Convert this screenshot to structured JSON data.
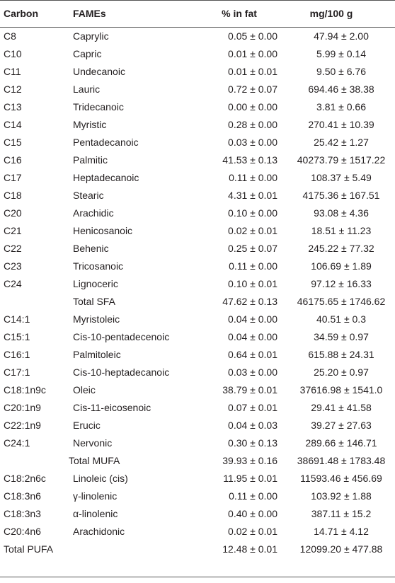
{
  "table": {
    "header": [
      "Carbon",
      "FAMEs",
      "% in fat",
      "mg/100 g"
    ],
    "rows": [
      [
        "C8",
        "Caprylic",
        "0.05 ± 0.00",
        "47.94 ± 2.00"
      ],
      [
        "C10",
        "Capric",
        "0.01 ± 0.00",
        "5.99 ± 0.14"
      ],
      [
        "C11",
        "Undecanoic",
        "0.01 ± 0.01",
        "9.50 ± 6.76"
      ],
      [
        "C12",
        "Lauric",
        "0.72 ± 0.07",
        "694.46 ± 38.38"
      ],
      [
        "C13",
        "Tridecanoic",
        "0.00 ± 0.00",
        "3.81 ± 0.66"
      ],
      [
        "C14",
        "Myristic",
        "0.28 ± 0.00",
        "270.41 ± 10.39"
      ],
      [
        "C15",
        "Pentadecanoic",
        "0.03 ± 0.00",
        "25.42 ± 1.27"
      ],
      [
        "C16",
        "Palmitic",
        "41.53 ± 0.13",
        "40273.79 ± 1517.22"
      ],
      [
        "C17",
        "Heptadecanoic",
        "0.11 ± 0.00",
        "108.37 ± 5.49"
      ],
      [
        "C18",
        "Stearic",
        "4.31 ± 0.01",
        "4175.36 ± 167.51"
      ],
      [
        "C20",
        "Arachidic",
        "0.10 ± 0.00",
        "93.08 ± 4.36"
      ],
      [
        "C21",
        "Henicosanoic",
        "0.02 ± 0.01",
        "18.51 ± 11.23"
      ],
      [
        "C22",
        "Behenic",
        "0.25 ± 0.07",
        "245.22 ± 77.32"
      ],
      [
        "C23",
        "Tricosanoic",
        "0.11 ± 0.00",
        "106.69 ± 1.89"
      ],
      [
        "C24",
        "Lignoceric",
        "0.10 ± 0.01",
        "97.12 ± 16.33"
      ],
      [
        null,
        "Total SFA",
        "47.62 ± 0.13",
        "46175.65 ± 1746.62"
      ],
      [
        "C14:1",
        "Myristoleic",
        "0.04 ± 0.00",
        "40.51 ± 0.3"
      ],
      [
        "C15:1",
        "Cis-10-pentadecenoic",
        "0.04 ± 0.00",
        "34.59 ± 0.97"
      ],
      [
        "C16:1",
        "Palmitoleic",
        "0.64 ± 0.01",
        "615.88 ± 24.31"
      ],
      [
        "C17:1",
        "Cis-10-heptadecanoic",
        "0.03 ± 0.00",
        "25.20 ± 0.97"
      ],
      [
        "C18:1n9c",
        "Oleic",
        "38.79 ± 0.01",
        "37616.98 ± 1541.0"
      ],
      [
        "C20:1n9",
        "Cis-11-eicosenoic",
        "0.07 ± 0.01",
        "29.41 ± 41.58"
      ],
      [
        "C22:1n9",
        "Erucic",
        "0.04 ± 0.03",
        "39.27 ± 27.63"
      ],
      [
        "C24:1",
        "Nervonic",
        "0.30 ± 0.13",
        "289.66 ± 146.71"
      ],
      [
        null,
        "Total MUFA",
        "39.93 ± 0.16",
        "38691.48 ± 1783.48"
      ],
      [
        "C18:2n6c",
        "Linoleic (cis)",
        "11.95 ± 0.01",
        "11593.46 ± 456.69"
      ],
      [
        "C18:3n6",
        "γ-linolenic",
        "0.11 ± 0.00",
        "103.92 ± 1.88"
      ],
      [
        "C18:3n3",
        "α-linolenic",
        "0.40 ± 0.00",
        "387.11 ± 15.2"
      ],
      [
        "C20:4n6",
        "Arachidonic",
        "0.02 ± 0.01",
        "14.71 ± 4.12"
      ],
      [
        "Total PUFA",
        null,
        "12.48 ± 0.01",
        "12099.20 ± 477.88"
      ]
    ]
  }
}
